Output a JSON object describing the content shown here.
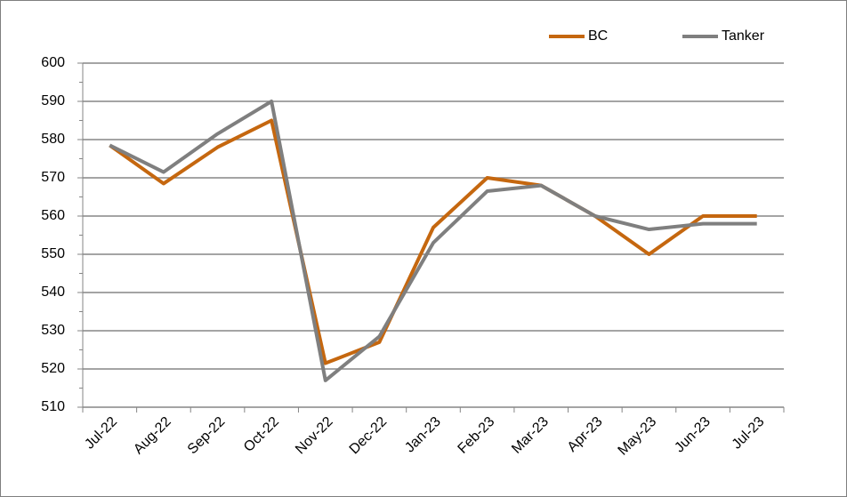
{
  "chart_data": {
    "type": "line",
    "categories": [
      "Jul-22",
      "Aug-22",
      "Sep-22",
      "Oct-22",
      "Nov-22",
      "Dec-22",
      "Jan-23",
      "Feb-23",
      "Mar-23",
      "Apr-23",
      "May-23",
      "Jun-23",
      "Jul-23"
    ],
    "series": [
      {
        "name": "BC",
        "color": "#c5670f",
        "values": [
          578.5,
          568.5,
          578,
          585,
          521.5,
          527,
          557,
          570,
          568,
          560,
          550,
          560,
          560
        ]
      },
      {
        "name": "Tanker",
        "color": "#7f7f7f",
        "values": [
          578.5,
          571.5,
          581.5,
          590,
          517,
          528.5,
          553,
          566.5,
          568,
          560,
          556.5,
          558,
          558
        ]
      }
    ],
    "ylim": [
      510,
      600
    ],
    "yticks": [
      510,
      520,
      530,
      540,
      550,
      560,
      570,
      580,
      590,
      600
    ],
    "grid": true,
    "legend": "top-right"
  }
}
